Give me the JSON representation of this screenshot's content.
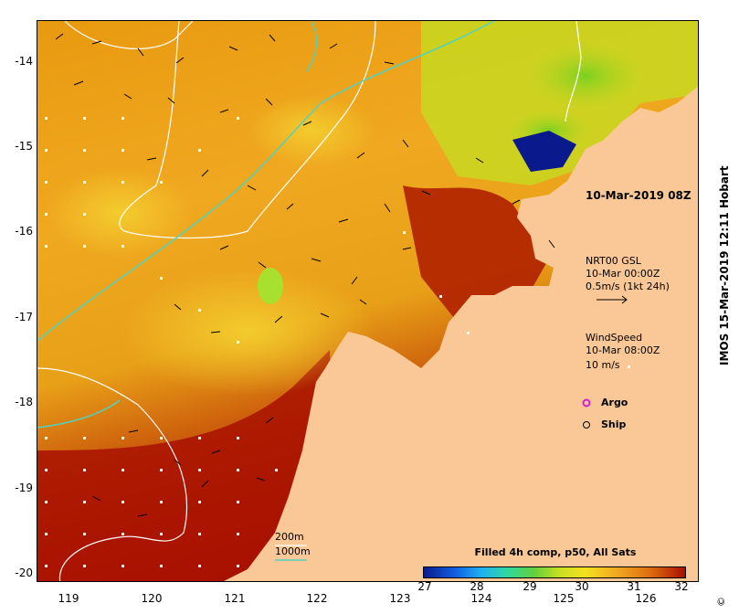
{
  "map": {
    "lat_ticks": [
      "-14",
      "-15",
      "-16",
      "-17",
      "-18",
      "-19",
      "-20"
    ],
    "lon_ticks": [
      "119",
      "120",
      "121",
      "122",
      "123",
      "124",
      "125",
      "126"
    ],
    "lat_values": [
      -14,
      -15,
      -16,
      -17,
      -18,
      -19,
      -20
    ],
    "lon_values": [
      119,
      120,
      121,
      122,
      123,
      124,
      125,
      126
    ],
    "lat_range": [
      -13.5,
      -20.1
    ],
    "lon_range": [
      118.6,
      126.8
    ]
  },
  "annotations": {
    "timestamp": "10-Mar-2019 08Z",
    "current_source": "NRT00 GSL",
    "current_time": "10-Mar 00:00Z",
    "current_scale": "0.5m/s (1kt 24h)",
    "wind_title": "WindSpeed",
    "wind_time": "10-Mar 08:00Z",
    "wind_scale": "10 m/s",
    "argo_label": "Argo",
    "ship_label": "Ship",
    "depth_200": "200m",
    "depth_1000": "1000m"
  },
  "colorbar": {
    "title": "Filled 4h comp, p50, All Sats",
    "ticks": [
      "27",
      "28",
      "29",
      "30",
      "31",
      "32"
    ],
    "range": [
      27,
      32
    ]
  },
  "credit": "IMOS 15-Mar-2019 12:11 Hobart",
  "copyright": "©",
  "colors": {
    "land": "#f9c896",
    "sst_low": "#0a1a8c",
    "sst_high": "#a80f00",
    "contour_200": "#ffffff",
    "contour_1000": "#4fd3c0",
    "argo": "#d020d0"
  }
}
